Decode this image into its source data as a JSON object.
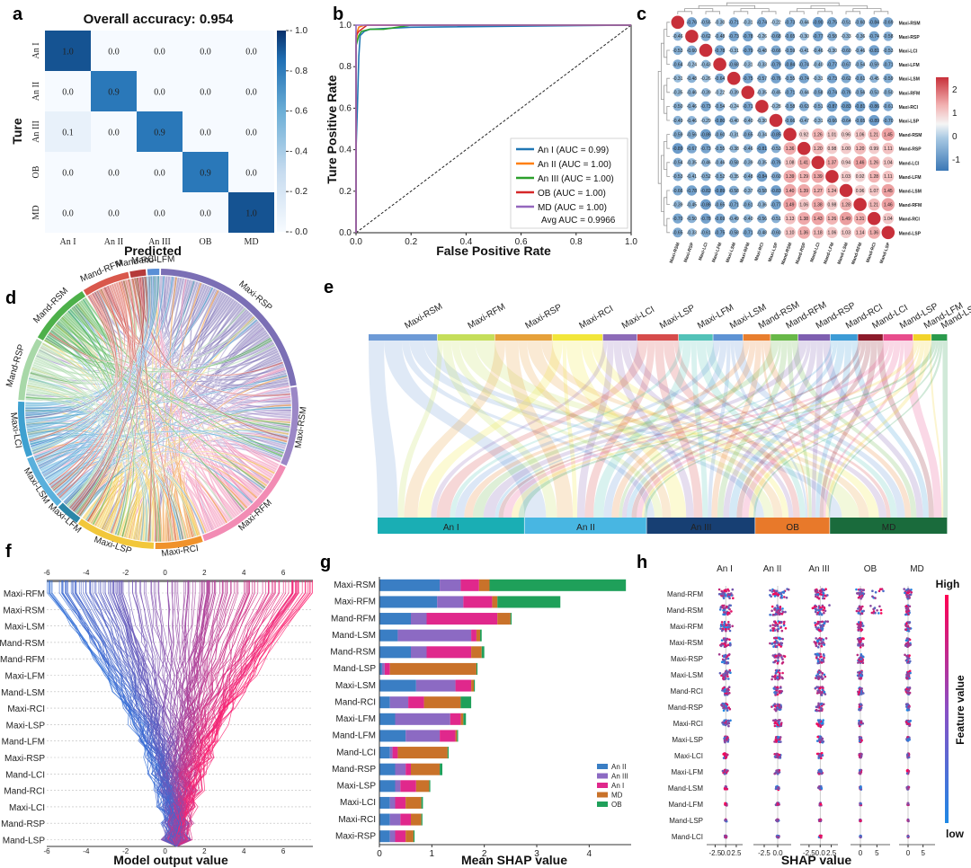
{
  "panel_labels": [
    "a",
    "b",
    "c",
    "d",
    "e",
    "f",
    "g",
    "h"
  ],
  "chart_data": [
    {
      "type": "heatmap",
      "panel": "a",
      "title": "Overall accuracy: 0.954",
      "xlabel": "Predicted",
      "ylabel": "Ture",
      "categories": [
        "An I",
        "An II",
        "An III",
        "OB",
        "MD"
      ],
      "values": [
        [
          1.0,
          0.0,
          0.0,
          0.0,
          0.0
        ],
        [
          0.0,
          0.9,
          0.0,
          0.0,
          0.0
        ],
        [
          0.1,
          0.0,
          0.9,
          0.0,
          0.0
        ],
        [
          0.0,
          0.0,
          0.0,
          0.9,
          0.0
        ],
        [
          0.0,
          0.0,
          0.0,
          0.0,
          1.0
        ]
      ],
      "value_labels": [
        [
          "1.0",
          "0.0",
          "0.0",
          "0.0",
          "0.0"
        ],
        [
          "0.0",
          "0.9",
          "0.0",
          "0.0",
          "0.0"
        ],
        [
          "0.1",
          "0.0",
          "0.9",
          "0.0",
          "0.0"
        ],
        [
          "0.0",
          "0.0",
          "0.0",
          "0.9",
          "0.0"
        ],
        [
          "0.0",
          "0.0",
          "0.0",
          "0.0",
          "1.0"
        ]
      ],
      "colorbar_ticks": [
        "0.0",
        "0.2",
        "0.4",
        "0.6",
        "0.8",
        "1.0"
      ],
      "colorbar_range": [
        0,
        1
      ]
    },
    {
      "type": "line",
      "panel": "b",
      "xlabel": "False Positive Rate",
      "ylabel": "Ture Positive Rate",
      "xlim": [
        0,
        1
      ],
      "ylim": [
        0,
        1
      ],
      "x_ticks": [
        "0.0",
        "0.2",
        "0.4",
        "0.6",
        "0.8",
        "1.0"
      ],
      "y_ticks": [
        "0.0",
        "0.2",
        "0.4",
        "0.6",
        "0.8",
        "1.0"
      ],
      "series": [
        {
          "name": "An I (AUC = 0.99)",
          "color": "#1f77b4",
          "points": [
            [
              0,
              0
            ],
            [
              0,
              0.4
            ],
            [
              0.005,
              0.6
            ],
            [
              0.01,
              0.85
            ],
            [
              0.015,
              0.95
            ],
            [
              0.03,
              0.97
            ],
            [
              0.05,
              0.98
            ],
            [
              0.2,
              0.99
            ],
            [
              1,
              1
            ]
          ]
        },
        {
          "name": "An II (AUC = 1.00)",
          "color": "#ff7f0e",
          "points": [
            [
              0,
              0
            ],
            [
              0,
              0.9
            ],
            [
              0.005,
              0.97
            ],
            [
              0.01,
              0.99
            ],
            [
              0.03,
              1
            ],
            [
              1,
              1
            ]
          ]
        },
        {
          "name": "An III (AUC = 1.00)",
          "color": "#2ca02c",
          "points": [
            [
              0,
              0
            ],
            [
              0,
              0.9
            ],
            [
              0.01,
              0.95
            ],
            [
              0.02,
              0.97
            ],
            [
              0.05,
              0.98
            ],
            [
              0.1,
              0.98
            ],
            [
              0.15,
              0.99
            ],
            [
              0.2,
              1
            ],
            [
              1,
              1
            ]
          ]
        },
        {
          "name": "OB (AUC = 1.00)",
          "color": "#d62728",
          "points": [
            [
              0,
              0
            ],
            [
              0,
              0.95
            ],
            [
              0.01,
              0.97
            ],
            [
              0.02,
              0.98
            ],
            [
              0.04,
              1
            ],
            [
              1,
              1
            ]
          ]
        },
        {
          "name": "MD (AUC = 1.00)",
          "color": "#9467bd",
          "points": [
            [
              0,
              0
            ],
            [
              0,
              1
            ],
            [
              1,
              1
            ]
          ]
        }
      ],
      "annotation": "Avg AUC = 0.9966"
    },
    {
      "type": "heatmap",
      "panel": "c",
      "labels": [
        "Maxi-RSM",
        "Maxi-RSP",
        "Maxi-LCI",
        "Maxi-LFM",
        "Maxi-LSM",
        "Maxi-RFM",
        "Maxi-RCI",
        "Maxi-LSP",
        "Mand-RSM",
        "Mand-RSP",
        "Mand-LCI",
        "Mand-LFM",
        "Mand-LSM",
        "Mand-RFM",
        "Mand-RCI",
        "Mand-LSP"
      ],
      "colorbar_ticks": [
        "2",
        "1",
        "0",
        "-1"
      ],
      "colorbar_range": [
        -1.5,
        2.5
      ],
      "diagonal_value": 2.8,
      "block_values": {
        "maxi_maxi": -0.5,
        "mand_mand": 1.2,
        "maxi_mand": -0.6
      }
    },
    {
      "type": "chord",
      "panel": "d",
      "labels": [
        "Maxi-RSP",
        "Maxi-RSM",
        "Maxi-RFM",
        "Maxi-RCI",
        "Maxi-LSP",
        "Maxi-LFM",
        "Maxi-LSM",
        "Maxi-LCI",
        "Mand-RSP",
        "Mand-RSM",
        "Mand-RFM",
        "Mand-RCI",
        "Mand-LFM"
      ],
      "colors": [
        "#7b6fb5",
        "#9b87c6",
        "#f28cb4",
        "#f0922b",
        "#f2c73a",
        "#2b86a8",
        "#5ab0dc",
        "#3ea0d0",
        "#a8d8a8",
        "#4db04a",
        "#d9584c",
        "#b53a3a",
        "#5a8fd6"
      ],
      "sizes": [
        24,
        10,
        14,
        6,
        10,
        3,
        7,
        7,
        8,
        8,
        6,
        2,
        1.5
      ]
    },
    {
      "type": "sankey",
      "panel": "e",
      "source_labels": [
        "Maxi-RSM",
        "Maxi-RFM",
        "Maxi-RSP",
        "Maxi-RCI",
        "Maxi-LCI",
        "Maxi-LSP",
        "Maxi-LFM",
        "Maxi-LSM",
        "Mand-RSM",
        "Mand-RFM",
        "Mand-RSP",
        "Mand-RCI",
        "Mand-LCI",
        "Mand-LSP",
        "Mand-LFM",
        "Mand-LSM"
      ],
      "source_colors": [
        "#6d9ad6",
        "#c5de5a",
        "#e6a13a",
        "#f2e63a",
        "#8d6bb8",
        "#d64b4b",
        "#52c2b8",
        "#5e93d4",
        "#e87e2e",
        "#68b848",
        "#7e5fb0",
        "#3c9bd6",
        "#8b1a2a",
        "#e84c8c",
        "#f2d32a",
        "#2a9a4c"
      ],
      "source_sizes": [
        3,
        2.5,
        2.5,
        2.2,
        1.5,
        1.8,
        1.5,
        1.3,
        1.2,
        1.2,
        1.4,
        1.2,
        1.1,
        1.3,
        0.8,
        0.7
      ],
      "target_labels": [
        "An I",
        "An II",
        "An III",
        "OB",
        "MD"
      ],
      "target_colors": [
        "#1aaeb4",
        "#48b6e2",
        "#173f73",
        "#e8792a",
        "#1a6b3c"
      ],
      "target_sizes": [
        6.5,
        5.4,
        4.8,
        3.3,
        5.2
      ]
    },
    {
      "type": "line",
      "panel": "f",
      "xlabel": "Model output value",
      "x_ticks": [
        "-6",
        "-4",
        "-2",
        "0",
        "2",
        "4",
        "6"
      ],
      "xlim": [
        -6,
        7.5
      ],
      "features": [
        "Maxi-RFM",
        "Maxi-RSM",
        "Maxi-LSM",
        "Mand-RSM",
        "Mand-RFM",
        "Maxi-LFM",
        "Mand-LSM",
        "Maxi-RCI",
        "Maxi-LSP",
        "Mand-LFM",
        "Maxi-RSP",
        "Mand-LCI",
        "Mand-RCI",
        "Maxi-LCI",
        "Mand-RSP",
        "Mand-LSP"
      ],
      "base_value": 0.6
    },
    {
      "type": "bar",
      "panel": "g",
      "xlabel": "Mean SHAP value",
      "x_ticks": [
        "0",
        "1",
        "2",
        "3",
        "4"
      ],
      "xlim": [
        0,
        4.8
      ],
      "categories": [
        "Maxi-RSM",
        "Maxi-RFM",
        "Mand-RFM",
        "Mand-LSM",
        "Mand-RSM",
        "Mand-LSP",
        "Maxi-LSM",
        "Mand-RCI",
        "Maxi-LFM",
        "Mand-LFM",
        "Mand-LCI",
        "Mand-RSP",
        "Maxi-LSP",
        "Maxi-LCI",
        "Maxi-RCI",
        "Maxi-RSP"
      ],
      "series": [
        {
          "name": "An II",
          "color": "#3a7ec4",
          "values": [
            1.15,
            1.1,
            0.6,
            0.35,
            0.6,
            0.05,
            0.7,
            0.2,
            0.3,
            0.5,
            0.2,
            0.3,
            0.3,
            0.2,
            0.2,
            0.2
          ]
        },
        {
          "name": "An III",
          "color": "#8c6ac3",
          "values": [
            0.4,
            0.5,
            0.3,
            1.4,
            0.3,
            0.05,
            0.75,
            0.35,
            1.05,
            0.65,
            0.05,
            0.2,
            0.1,
            0.1,
            0.2,
            0.1
          ]
        },
        {
          "name": "An I",
          "color": "#e0288c",
          "values": [
            0.35,
            0.55,
            1.35,
            0.1,
            0.85,
            0.1,
            0.3,
            0.3,
            0.2,
            0.3,
            0.1,
            0.1,
            0.3,
            0.2,
            0.2,
            0.2
          ]
        },
        {
          "name": "MD",
          "color": "#c9722a",
          "values": [
            0.2,
            0.1,
            0.25,
            0.07,
            0.2,
            1.65,
            0.05,
            0.7,
            0.05,
            0.03,
            0.95,
            0.55,
            0.25,
            0.3,
            0.2,
            0.15
          ]
        },
        {
          "name": "OB",
          "color": "#1fa05a",
          "values": [
            2.6,
            1.2,
            0.02,
            0.03,
            0.05,
            0.02,
            0.02,
            0.2,
            0.05,
            0.02,
            0.02,
            0.05,
            0.02,
            0.03,
            0.02,
            0.02
          ]
        }
      ]
    },
    {
      "type": "scatter",
      "panel": "h",
      "xlabel": "SHAP value",
      "columns": [
        "An I",
        "An II",
        "An III",
        "OB",
        "MD"
      ],
      "column_ticks": [
        [
          "-2.5",
          "0.0",
          "2.5"
        ],
        [
          "-2.5",
          "0.0"
        ],
        [
          "-2.5",
          "0.0",
          "2.5"
        ],
        [
          "0",
          "5"
        ],
        [
          "0",
          "5"
        ]
      ],
      "features": [
        "Mand-RFM",
        "Mand-RSM",
        "Maxi-RFM",
        "Maxi-RSM",
        "Maxi-RSP",
        "Maxi-LSM",
        "Mand-RCI",
        "Mand-RSP",
        "Maxi-RCI",
        "Maxi-LSP",
        "Maxi-LCI",
        "Maxi-LFM",
        "Mand-LSM",
        "Mand-LFM",
        "Mand-LSP",
        "Mand-LCI"
      ],
      "colorbar_label": "Feature value",
      "colorbar_high": "High",
      "colorbar_low": "low"
    }
  ]
}
